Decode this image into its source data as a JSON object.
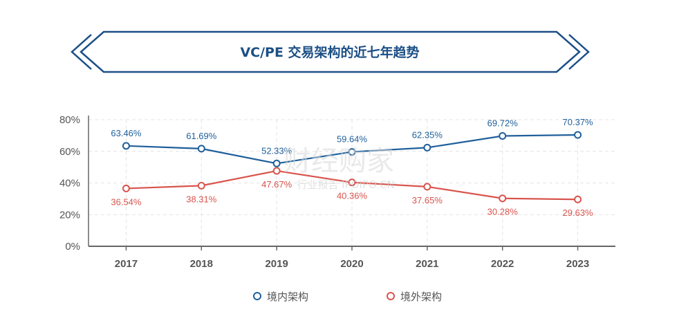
{
  "watermark": {
    "main": "财经购家",
    "sub": "行业报告 IPOIPO.CN"
  },
  "chart_data": {
    "type": "line",
    "title": "VC/PE 交易架构的近七年趋势",
    "categories": [
      "2017",
      "2018",
      "2019",
      "2020",
      "2021",
      "2022",
      "2023"
    ],
    "ylim": [
      0,
      80
    ],
    "yticks": [
      0,
      20,
      40,
      60,
      80
    ],
    "ytick_labels": [
      "0%",
      "20%",
      "40%",
      "60%",
      "80%"
    ],
    "grid": true,
    "legend_position": "bottom",
    "series": [
      {
        "name": "境内架构",
        "color": "#1f5f9b",
        "values": [
          63.46,
          61.69,
          52.33,
          59.64,
          62.35,
          69.72,
          70.37
        ],
        "labels": [
          "63.46%",
          "61.69%",
          "52.33%",
          "59.64%",
          "62.35%",
          "69.72%",
          "70.37%"
        ]
      },
      {
        "name": "境外架构",
        "color": "#d9544d",
        "values": [
          36.54,
          38.31,
          47.67,
          40.36,
          37.65,
          30.28,
          29.63
        ],
        "labels": [
          "36.54%",
          "38.31%",
          "47.67%",
          "40.36%",
          "37.65%",
          "30.28%",
          "29.63%"
        ]
      }
    ]
  }
}
